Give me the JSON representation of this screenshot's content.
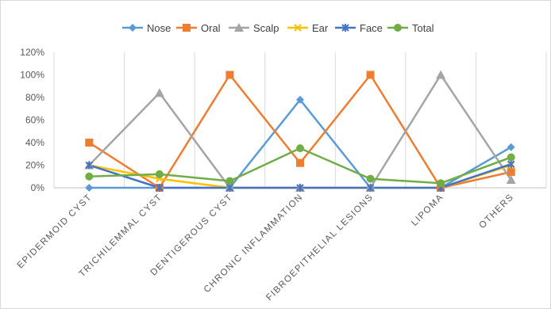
{
  "chart_data": {
    "type": "line",
    "categories": [
      "EPIDERMOID CYST",
      "TRICHILEMMAL CYST",
      "DENTIGEROUS CYST",
      "CHRONIC INFLAMMATION",
      "FIBROEPITHELIAL LESIONS",
      "LIPOMA",
      "OTHERS"
    ],
    "ylim": [
      0,
      120
    ],
    "yticks": [
      0,
      20,
      40,
      60,
      80,
      100,
      120
    ],
    "ytick_labels": [
      "0%",
      "20%",
      "40%",
      "60%",
      "80%",
      "100%",
      "120%"
    ],
    "grid": "vertical",
    "legend_position": "top",
    "series": [
      {
        "name": "Nose",
        "color": "#5B9BD5",
        "marker": "diamond",
        "values": [
          0,
          0,
          0,
          78,
          0,
          0,
          36
        ]
      },
      {
        "name": "Oral",
        "color": "#ED7D31",
        "marker": "square",
        "values": [
          40,
          0,
          100,
          22,
          100,
          0,
          14
        ]
      },
      {
        "name": "Scalp",
        "color": "#A5A5A5",
        "marker": "triangle",
        "values": [
          20,
          84,
          0,
          0,
          0,
          100,
          7
        ]
      },
      {
        "name": "Ear",
        "color": "#FFC000",
        "marker": "x",
        "values": [
          20,
          8,
          0,
          0,
          0,
          0,
          20
        ]
      },
      {
        "name": "Face",
        "color": "#4472C4",
        "marker": "star",
        "values": [
          20,
          0,
          0,
          0,
          0,
          0,
          21
        ]
      },
      {
        "name": "Total",
        "color": "#70AD47",
        "marker": "circle",
        "values": [
          10,
          12,
          6,
          35,
          8,
          4,
          27
        ]
      }
    ]
  }
}
